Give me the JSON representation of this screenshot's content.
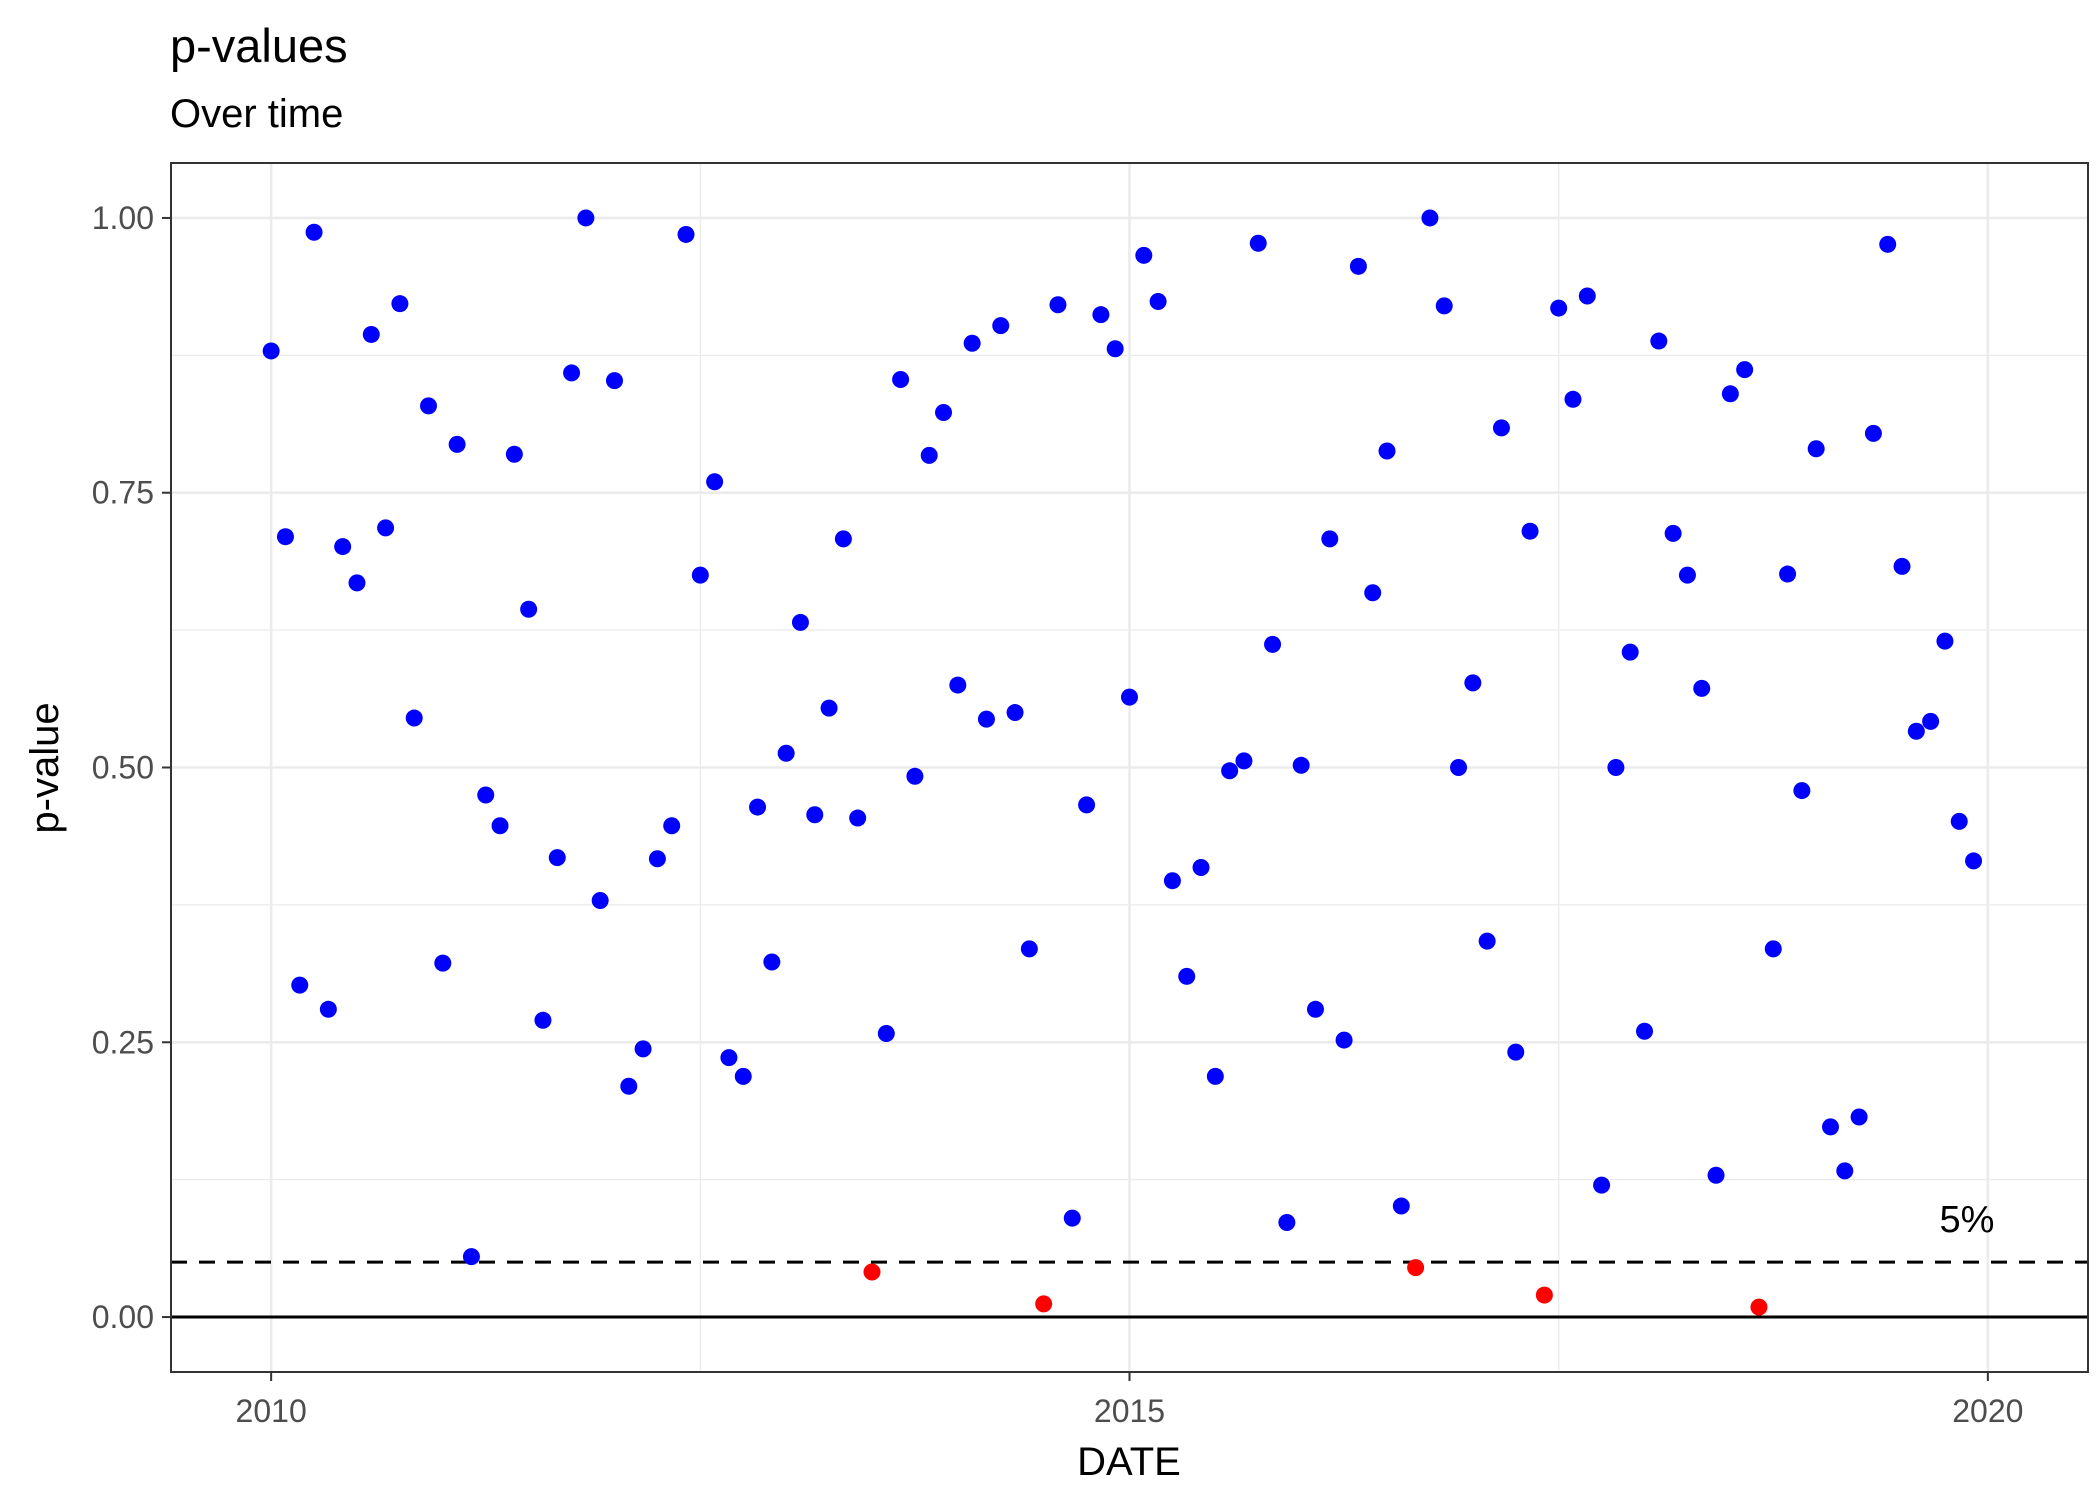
{
  "chart_data": {
    "type": "scatter",
    "title": "p-values",
    "subtitle": "Over time",
    "xlabel": "DATE",
    "ylabel": "p-value",
    "xlim": [
      "2009-06-01",
      "2020-08-01"
    ],
    "ylim": [
      -0.05,
      1.05
    ],
    "x_ticks": [
      "2010",
      "2015",
      "2020"
    ],
    "y_ticks": [
      "0.00",
      "0.25",
      "0.50",
      "0.75",
      "1.00"
    ],
    "grid": true,
    "threshold": {
      "value": 0.05,
      "label": "5%",
      "style": "dashed"
    },
    "baseline": {
      "value": 0,
      "style": "solid"
    },
    "colors": {
      "above_threshold": "#0000ff",
      "below_threshold": "#ff0000"
    },
    "x": [
      "2010-01",
      "2010-02",
      "2010-03",
      "2010-04",
      "2010-05",
      "2010-06",
      "2010-07",
      "2010-08",
      "2010-09",
      "2010-10",
      "2010-11",
      "2010-12",
      "2011-01",
      "2011-02",
      "2011-03",
      "2011-04",
      "2011-05",
      "2011-06",
      "2011-07",
      "2011-08",
      "2011-09",
      "2011-10",
      "2011-11",
      "2011-12",
      "2012-01",
      "2012-02",
      "2012-03",
      "2012-04",
      "2012-05",
      "2012-06",
      "2012-07",
      "2012-08",
      "2012-09",
      "2012-10",
      "2012-11",
      "2012-12",
      "2013-01",
      "2013-02",
      "2013-03",
      "2013-04",
      "2013-05",
      "2013-06",
      "2013-07",
      "2013-08",
      "2013-09",
      "2013-10",
      "2013-11",
      "2013-12",
      "2014-01",
      "2014-02",
      "2014-03",
      "2014-04",
      "2014-05",
      "2014-06",
      "2014-07",
      "2014-08",
      "2014-09",
      "2014-10",
      "2014-11",
      "2014-12",
      "2015-01",
      "2015-02",
      "2015-03",
      "2015-04",
      "2015-05",
      "2015-06",
      "2015-07",
      "2015-08",
      "2015-09",
      "2015-10",
      "2015-11",
      "2015-12",
      "2016-01",
      "2016-02",
      "2016-03",
      "2016-04",
      "2016-05",
      "2016-06",
      "2016-07",
      "2016-08",
      "2016-09",
      "2016-10",
      "2016-11",
      "2016-12",
      "2017-01",
      "2017-02",
      "2017-03",
      "2017-04",
      "2017-05",
      "2017-06",
      "2017-07",
      "2017-08",
      "2017-09",
      "2017-10",
      "2017-11",
      "2017-12",
      "2018-01",
      "2018-02",
      "2018-03",
      "2018-04",
      "2018-05",
      "2018-06",
      "2018-07",
      "2018-08",
      "2018-09",
      "2018-10",
      "2018-11",
      "2018-12",
      "2019-01",
      "2019-02",
      "2019-03",
      "2019-04",
      "2019-05",
      "2019-06",
      "2019-07",
      "2019-08",
      "2019-09",
      "2019-10",
      "2019-11",
      "2019-12"
    ],
    "y": [
      0.879,
      0.71,
      0.302,
      0.987,
      0.28,
      0.701,
      0.668,
      0.894,
      0.718,
      0.922,
      0.545,
      0.829,
      0.322,
      0.794,
      0.055,
      0.475,
      0.447,
      0.785,
      0.644,
      0.27,
      0.418,
      0.859,
      1.0,
      0.379,
      0.852,
      0.21,
      0.244,
      0.417,
      0.447,
      0.985,
      0.675,
      0.76,
      0.236,
      0.219,
      0.464,
      0.323,
      0.513,
      0.632,
      0.457,
      0.554,
      0.708,
      0.454,
      0.041,
      0.258,
      0.853,
      0.492,
      0.784,
      0.823,
      0.575,
      0.886,
      0.544,
      0.902,
      0.55,
      0.335,
      0.012,
      0.921,
      0.09,
      0.466,
      0.912,
      0.881,
      0.564,
      0.966,
      0.924,
      0.397,
      0.31,
      0.409,
      0.219,
      0.497,
      0.506,
      0.977,
      0.612,
      0.086,
      0.502,
      0.28,
      0.708,
      0.252,
      0.956,
      0.659,
      0.788,
      0.101,
      0.045,
      1.0,
      0.92,
      0.5,
      0.577,
      0.342,
      0.809,
      0.241,
      0.715,
      0.02,
      0.918,
      0.835,
      0.929,
      0.12,
      0.5,
      0.605,
      0.26,
      0.888,
      0.713,
      0.675,
      0.572,
      0.129,
      0.84,
      0.862,
      0.009,
      0.335,
      0.676,
      0.479,
      0.79,
      0.173,
      0.133,
      0.182,
      0.804,
      0.976,
      0.683,
      0.533,
      0.542,
      0.615,
      0.451,
      0.415
    ]
  }
}
